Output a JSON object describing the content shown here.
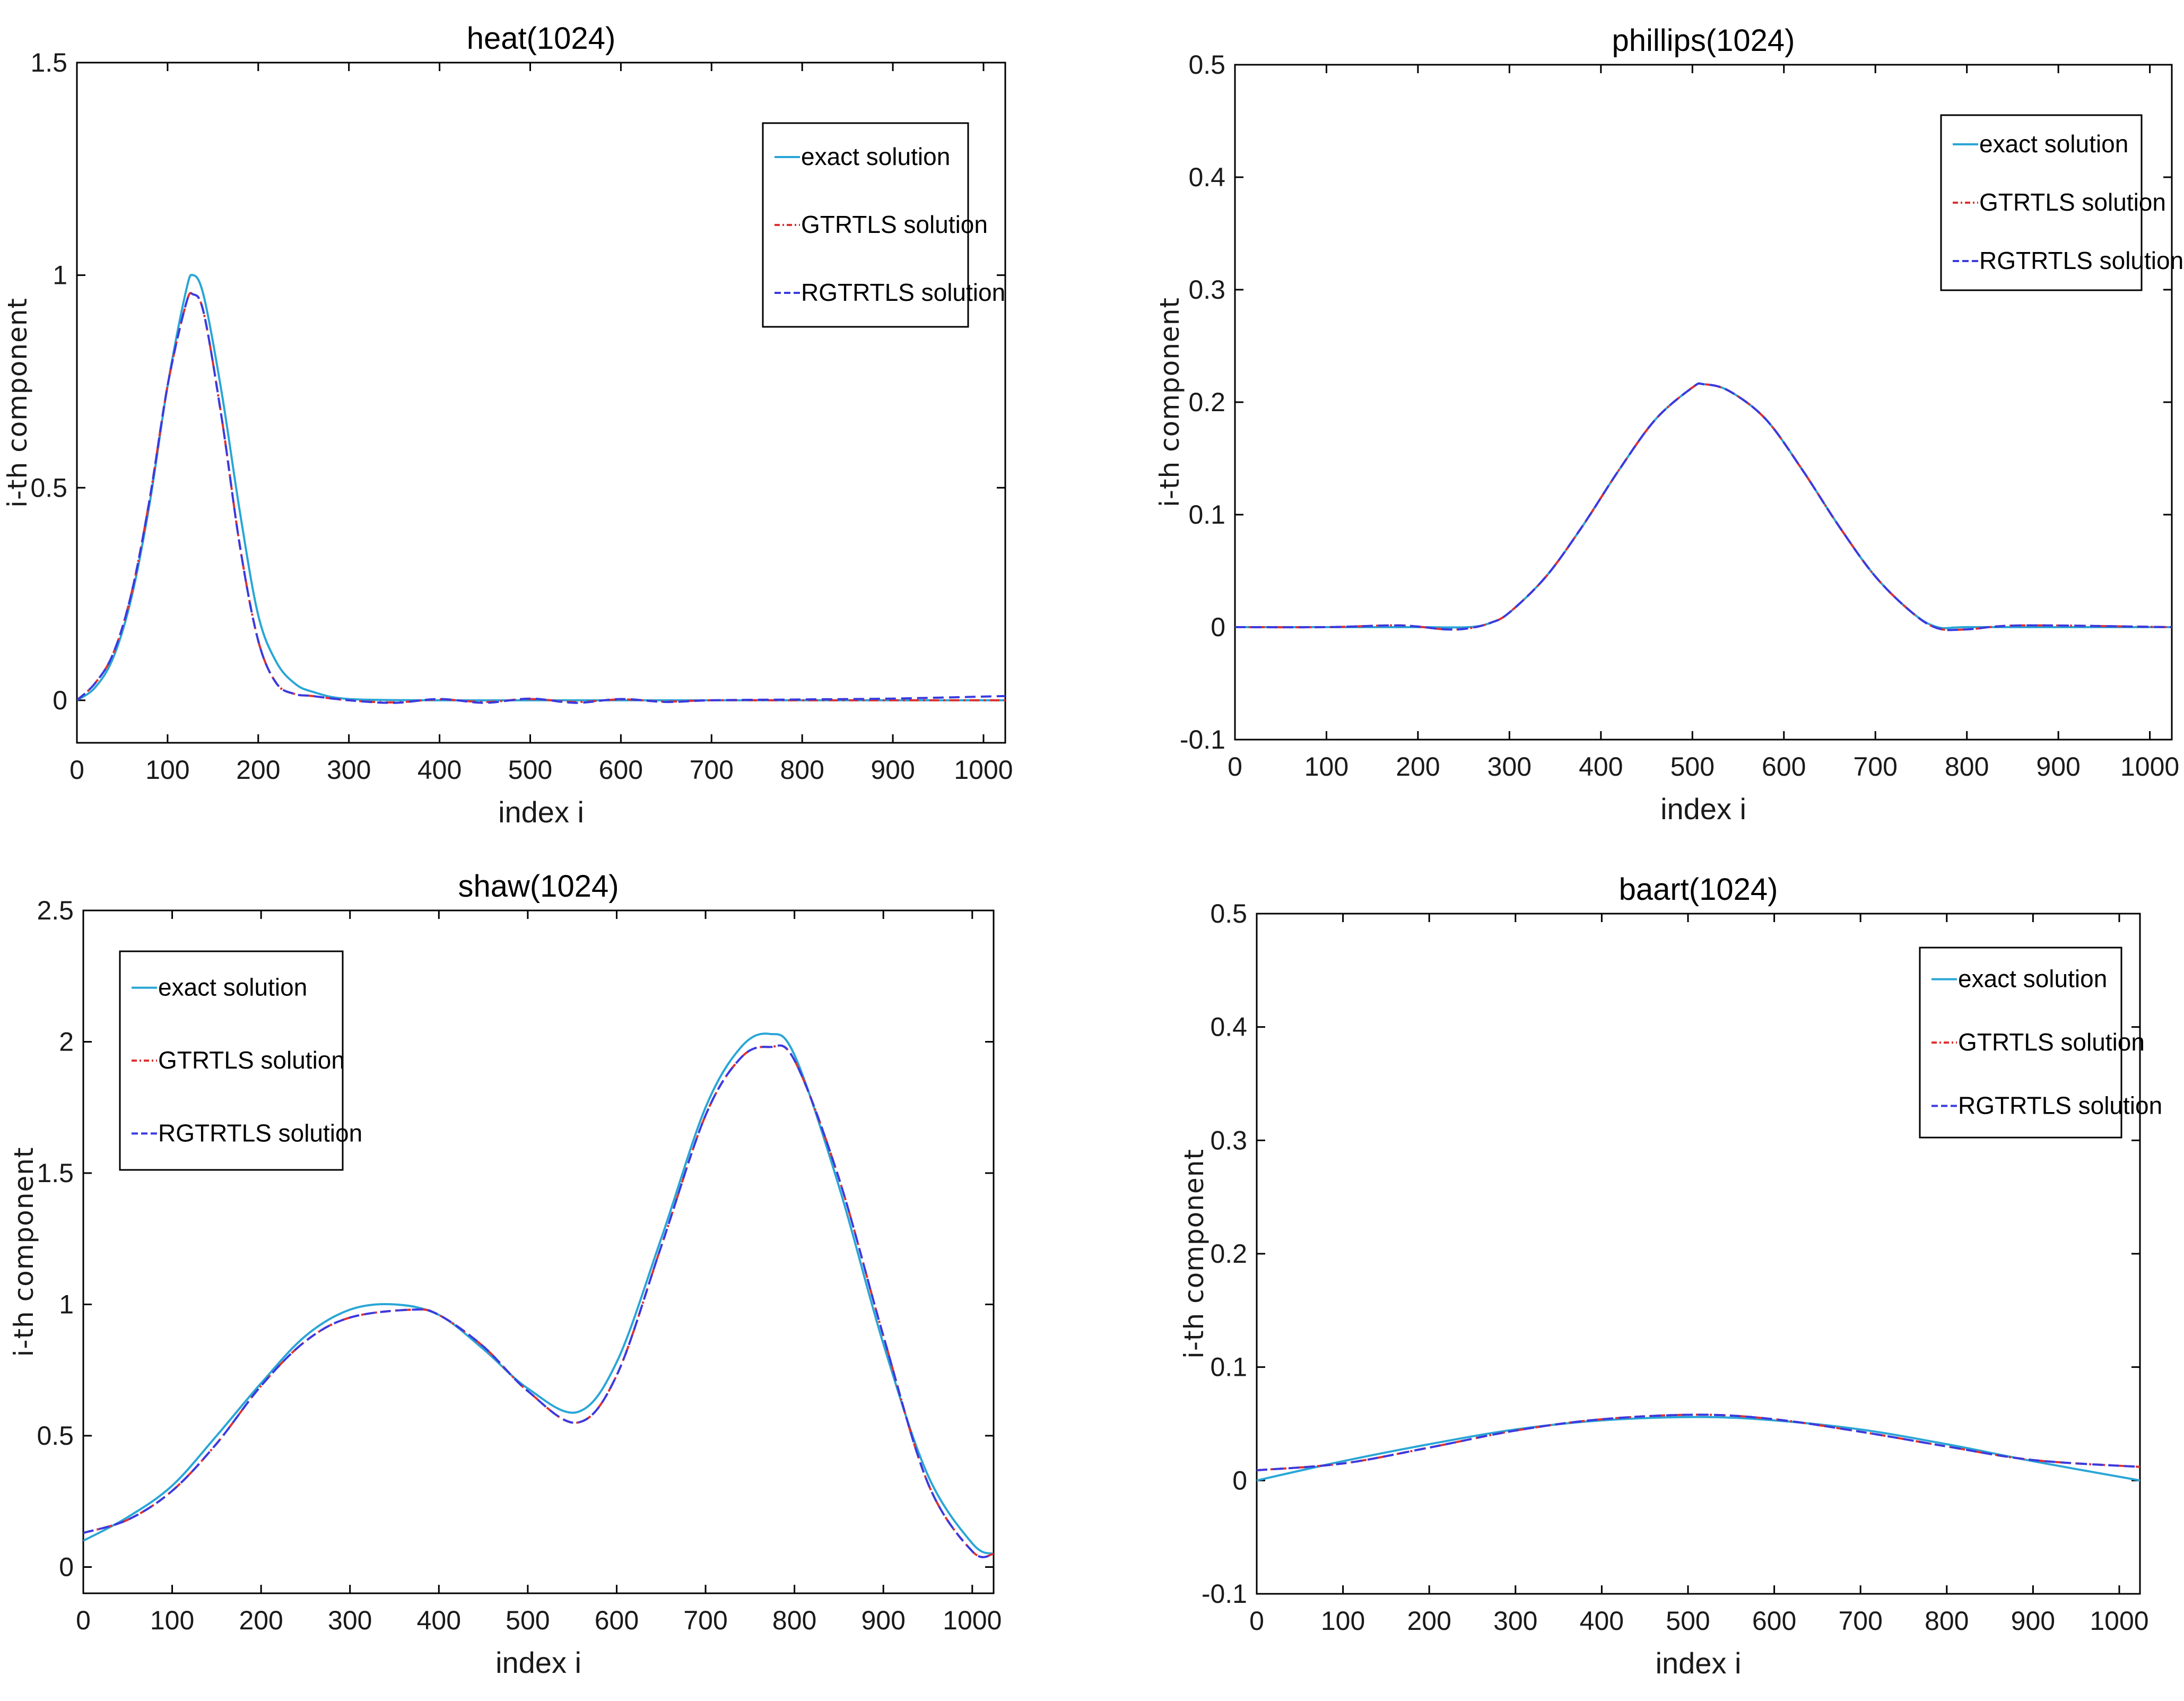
{
  "chart_data": [
    {
      "type": "line",
      "title": "heat(1024)",
      "xlabel": "index i",
      "ylabel": "i-th component",
      "xlim": [
        0,
        1024
      ],
      "ylim": [
        -0.1,
        1.5
      ],
      "xticks": [
        0,
        100,
        200,
        300,
        400,
        500,
        600,
        700,
        800,
        900,
        1000
      ],
      "yticks": [
        0,
        0.5,
        1,
        1.5
      ],
      "legend_position": "top-right",
      "series": [
        {
          "name": "exact solution",
          "color": "#29a6d6",
          "dash": "solid",
          "x": [
            0,
            20,
            40,
            60,
            80,
            100,
            120,
            128,
            140,
            160,
            180,
            200,
            220,
            240,
            260,
            300,
            400,
            500,
            600,
            700,
            800,
            900,
            1024
          ],
          "y": [
            0.0,
            0.03,
            0.1,
            0.24,
            0.46,
            0.74,
            0.96,
            1.0,
            0.95,
            0.72,
            0.44,
            0.2,
            0.09,
            0.04,
            0.02,
            0.003,
            0.0,
            0.0,
            0.0,
            0.0,
            0.0,
            0.0,
            0.0
          ]
        },
        {
          "name": "GTRTLS solution",
          "color": "#e03030",
          "dash": "dashdot",
          "x": [
            0,
            20,
            40,
            60,
            80,
            100,
            120,
            128,
            140,
            160,
            180,
            200,
            220,
            240,
            260,
            300,
            350,
            400,
            450,
            500,
            550,
            600,
            650,
            700,
            800,
            900,
            1024
          ],
          "y": [
            0.0,
            0.04,
            0.11,
            0.25,
            0.47,
            0.74,
            0.93,
            0.955,
            0.91,
            0.66,
            0.36,
            0.14,
            0.04,
            0.015,
            0.01,
            0.0,
            -0.005,
            0.002,
            -0.004,
            0.003,
            -0.004,
            0.002,
            -0.003,
            0.0,
            0.0,
            0.0,
            0.0
          ]
        },
        {
          "name": "RGTRTLS solution",
          "color": "#3a3ae0",
          "dash": "dash",
          "x": [
            0,
            20,
            40,
            60,
            80,
            100,
            120,
            128,
            140,
            160,
            180,
            200,
            220,
            240,
            260,
            300,
            350,
            400,
            450,
            500,
            550,
            600,
            650,
            700,
            800,
            900,
            1024
          ],
          "y": [
            0.0,
            0.04,
            0.11,
            0.25,
            0.47,
            0.74,
            0.93,
            0.955,
            0.91,
            0.66,
            0.36,
            0.14,
            0.04,
            0.015,
            0.01,
            0.0,
            -0.006,
            0.003,
            -0.006,
            0.004,
            -0.006,
            0.003,
            -0.004,
            0.0,
            0.002,
            0.004,
            0.01
          ]
        }
      ],
      "legend_entries": [
        "exact solution",
        "GTRTLS solution",
        "RGTRTLS solution"
      ]
    },
    {
      "type": "line",
      "title": "phillips(1024)",
      "xlabel": "index i",
      "ylabel": "i-th component",
      "xlim": [
        0,
        1024
      ],
      "ylim": [
        -0.1,
        0.5
      ],
      "xticks": [
        0,
        100,
        200,
        300,
        400,
        500,
        600,
        700,
        800,
        900,
        1000
      ],
      "yticks": [
        -0.1,
        0,
        0.1,
        0.2,
        0.3,
        0.4,
        0.5
      ],
      "legend_position": "top-right",
      "series": [
        {
          "name": "exact solution",
          "color": "#29a6d6",
          "dash": "solid",
          "x": [
            0,
            100,
            200,
            256,
            280,
            300,
            340,
            380,
            420,
            460,
            500,
            512,
            540,
            580,
            620,
            660,
            700,
            740,
            768,
            800,
            900,
            1024
          ],
          "y": [
            0.0,
            0.0,
            0.0,
            0.0,
            0.004,
            0.013,
            0.045,
            0.09,
            0.14,
            0.185,
            0.213,
            0.216,
            0.21,
            0.185,
            0.14,
            0.09,
            0.045,
            0.013,
            0.0,
            0.0,
            0.0,
            0.0
          ]
        },
        {
          "name": "GTRTLS solution",
          "color": "#e03030",
          "dash": "dashdot",
          "x": [
            0,
            100,
            180,
            230,
            256,
            280,
            300,
            340,
            380,
            420,
            460,
            500,
            512,
            540,
            580,
            620,
            660,
            700,
            740,
            768,
            800,
            860,
            1024
          ],
          "y": [
            0.0,
            0.0,
            0.0015,
            -0.002,
            -0.001,
            0.004,
            0.013,
            0.045,
            0.09,
            0.14,
            0.185,
            0.213,
            0.216,
            0.21,
            0.185,
            0.14,
            0.09,
            0.045,
            0.013,
            -0.001,
            -0.002,
            0.0015,
            0.0
          ]
        },
        {
          "name": "RGTRTLS solution",
          "color": "#3a3ae0",
          "dash": "dash",
          "x": [
            0,
            100,
            180,
            230,
            256,
            280,
            300,
            340,
            380,
            420,
            460,
            500,
            512,
            540,
            580,
            620,
            660,
            700,
            740,
            768,
            800,
            860,
            1024
          ],
          "y": [
            0.0,
            0.0,
            0.0015,
            -0.002,
            -0.001,
            0.004,
            0.013,
            0.045,
            0.09,
            0.14,
            0.185,
            0.213,
            0.216,
            0.21,
            0.185,
            0.14,
            0.09,
            0.045,
            0.013,
            -0.001,
            -0.002,
            0.0015,
            0.0
          ]
        }
      ],
      "legend_entries": [
        "exact solution",
        "GTRTLS solution",
        "RGTRTLS solution"
      ]
    },
    {
      "type": "line",
      "title": "shaw(1024)",
      "xlabel": "index i",
      "ylabel": "i-th component",
      "xlim": [
        0,
        1024
      ],
      "ylim": [
        -0.1,
        2.5
      ],
      "xticks": [
        0,
        100,
        200,
        300,
        400,
        500,
        600,
        700,
        800,
        900,
        1000
      ],
      "yticks": [
        0,
        0.5,
        1,
        1.5,
        2,
        2.5
      ],
      "legend_position": "top-left",
      "series": [
        {
          "name": "exact solution",
          "color": "#29a6d6",
          "dash": "solid",
          "x": [
            0,
            50,
            100,
            150,
            200,
            250,
            300,
            350,
            400,
            450,
            500,
            556,
            600,
            650,
            700,
            740,
            772,
            800,
            850,
            900,
            950,
            1000,
            1024
          ],
          "y": [
            0.1,
            0.19,
            0.31,
            0.5,
            0.7,
            0.88,
            0.98,
            1.0,
            0.96,
            0.83,
            0.68,
            0.59,
            0.78,
            1.25,
            1.75,
            1.98,
            2.03,
            1.95,
            1.45,
            0.85,
            0.35,
            0.09,
            0.05
          ]
        },
        {
          "name": "GTRTLS solution",
          "color": "#e03030",
          "dash": "dashdot",
          "x": [
            0,
            50,
            100,
            150,
            200,
            250,
            300,
            370,
            400,
            450,
            500,
            556,
            600,
            650,
            700,
            740,
            772,
            800,
            850,
            900,
            950,
            1000,
            1024
          ],
          "y": [
            0.13,
            0.18,
            0.29,
            0.47,
            0.69,
            0.86,
            0.95,
            0.98,
            0.96,
            0.84,
            0.67,
            0.55,
            0.73,
            1.22,
            1.72,
            1.94,
            1.98,
            1.93,
            1.48,
            0.88,
            0.32,
            0.06,
            0.05
          ]
        },
        {
          "name": "RGTRTLS solution",
          "color": "#3a3ae0",
          "dash": "dash",
          "x": [
            0,
            50,
            100,
            150,
            200,
            250,
            300,
            370,
            400,
            450,
            500,
            556,
            600,
            650,
            700,
            740,
            772,
            800,
            850,
            900,
            950,
            1000,
            1024
          ],
          "y": [
            0.13,
            0.18,
            0.29,
            0.47,
            0.69,
            0.86,
            0.95,
            0.98,
            0.96,
            0.84,
            0.67,
            0.55,
            0.73,
            1.22,
            1.72,
            1.94,
            1.98,
            1.93,
            1.48,
            0.88,
            0.32,
            0.06,
            0.05
          ]
        }
      ],
      "legend_entries": [
        "exact solution",
        "GTRTLS solution",
        "RGTRTLS solution"
      ]
    },
    {
      "type": "line",
      "title": "baart(1024)",
      "xlabel": "index i",
      "ylabel": "i-th component",
      "xlim": [
        0,
        1024
      ],
      "ylim": [
        -0.1,
        0.5
      ],
      "xticks": [
        0,
        100,
        200,
        300,
        400,
        500,
        600,
        700,
        800,
        900,
        1000
      ],
      "yticks": [
        -0.1,
        0,
        0.1,
        0.2,
        0.3,
        0.4,
        0.5
      ],
      "legend_position": "top-right",
      "series": [
        {
          "name": "exact solution",
          "color": "#29a6d6",
          "dash": "solid",
          "x": [
            0,
            100,
            200,
            300,
            400,
            512,
            600,
            700,
            800,
            900,
            1024
          ],
          "y": [
            0.0,
            0.017,
            0.032,
            0.045,
            0.053,
            0.056,
            0.053,
            0.045,
            0.032,
            0.017,
            0.0
          ]
        },
        {
          "name": "GTRTLS solution",
          "color": "#e03030",
          "dash": "dashdot",
          "x": [
            0,
            100,
            200,
            300,
            400,
            512,
            600,
            700,
            800,
            900,
            1024
          ],
          "y": [
            0.009,
            0.015,
            0.029,
            0.044,
            0.054,
            0.058,
            0.054,
            0.043,
            0.03,
            0.018,
            0.012
          ]
        },
        {
          "name": "RGTRTLS solution",
          "color": "#3a3ae0",
          "dash": "dash",
          "x": [
            0,
            100,
            200,
            300,
            400,
            512,
            600,
            700,
            800,
            900,
            1024
          ],
          "y": [
            0.009,
            0.015,
            0.029,
            0.044,
            0.054,
            0.058,
            0.054,
            0.043,
            0.03,
            0.018,
            0.012
          ]
        }
      ],
      "legend_entries": [
        "exact solution",
        "GTRTLS solution",
        "RGTRTLS solution"
      ]
    }
  ]
}
